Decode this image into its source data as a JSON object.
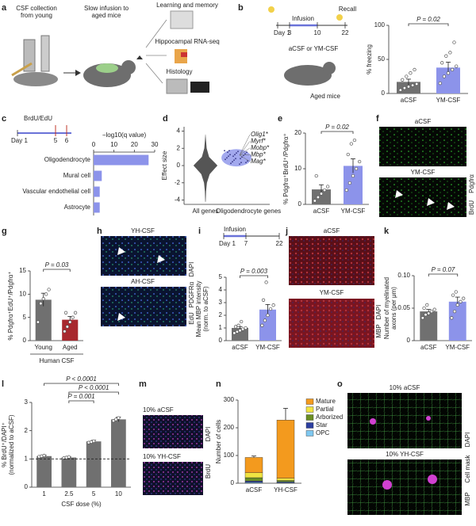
{
  "panel_labels": [
    "a",
    "b",
    "c",
    "d",
    "e",
    "f",
    "g",
    "h",
    "i",
    "j",
    "k",
    "l",
    "m",
    "n",
    "o"
  ],
  "panel_a": {
    "steps": [
      "CSF collection from young",
      "Slow infusion to aged mice"
    ],
    "readouts": [
      "Learning and memory",
      "Hippocampal RNA-seq",
      "Histology"
    ]
  },
  "panel_b": {
    "timeline": [
      "Day 1",
      "3",
      "10",
      "22"
    ],
    "phases": [
      "Infusion",
      "Recall"
    ],
    "treatment": "aCSF or YM-CSF",
    "subject": "Aged mice"
  },
  "panel_c": {
    "timeline_title": "BrdU/EdU",
    "timeline": [
      "Day 1",
      "5",
      "6"
    ]
  },
  "panel_f": {
    "conditions": [
      "aCSF",
      "YM-CSF"
    ],
    "stains": [
      "BrdU",
      "Pdgfrα"
    ]
  },
  "panel_h": {
    "conditions": [
      "YH-CSF",
      "AH-CSF"
    ],
    "stains": [
      "EdU",
      "PDGFRα",
      "DAPI"
    ]
  },
  "panel_i": {
    "timeline_title": "Infusion",
    "timeline": [
      "Day 1",
      "7",
      "22"
    ]
  },
  "panel_j": {
    "conditions": [
      "aCSF",
      "YM-CSF"
    ],
    "stains": [
      "MBP",
      "DAPI"
    ]
  },
  "panel_m": {
    "conditions": [
      "10% aCSF",
      "10% YH-CSF"
    ],
    "stains": [
      "BrdU",
      "DAPI"
    ]
  },
  "panel_o": {
    "conditions": [
      "10% aCSF",
      "10% YH-CSF"
    ],
    "stains": [
      "MBP",
      "Cell mask",
      "DAPI"
    ]
  },
  "chart_data": [
    {
      "type": "bar",
      "ylabel": "% freezing",
      "categories": [
        "aCSF",
        "YM-CSF"
      ],
      "values": [
        17,
        38
      ],
      "errors": [
        4,
        8
      ],
      "points": [
        [
          5,
          8,
          10,
          12,
          14,
          20,
          25,
          30,
          35
        ],
        [
          15,
          25,
          30,
          35,
          40,
          45,
          55,
          60,
          75
        ]
      ],
      "colors": [
        "#707070",
        "#8c93ea"
      ],
      "ylim": [
        0,
        100
      ],
      "yticks": [
        0,
        50,
        100
      ],
      "annotations": [
        "P = 0.02"
      ]
    },
    {
      "type": "hbar",
      "xlabel": "−log10(q value)",
      "categories": [
        "Oligodendrocyte",
        "Mural cell",
        "Vascular endothelial cell",
        "Astrocyte"
      ],
      "values": [
        27,
        4,
        3,
        3
      ],
      "color": "#8c93ea",
      "xlim": [
        0,
        30
      ],
      "xticks": [
        0,
        10,
        20,
        30
      ]
    },
    {
      "type": "violin",
      "ylabel": "Effect size",
      "categories": [
        "All genes",
        "Oligodendrocyte genes"
      ],
      "labels": [
        "Olig1*",
        "Myrf*",
        "Mobp*",
        "Mbp*",
        "Mag*"
      ],
      "colors": [
        "#555555",
        "#8c93ea"
      ],
      "ylim": [
        -4.5,
        4.5
      ],
      "yticks": [
        -4,
        -2,
        0,
        2,
        4
      ]
    },
    {
      "type": "bar",
      "ylabel": "% Pdgfrα⁺BrdU⁺/Pdgfrα⁺",
      "categories": [
        "aCSF",
        "YM-CSF"
      ],
      "values": [
        4.2,
        10.8
      ],
      "errors": [
        1.3,
        2.0
      ],
      "points": [
        [
          1,
          2,
          3,
          4,
          5,
          8
        ],
        [
          4,
          6,
          8,
          10,
          12,
          14,
          17,
          18
        ]
      ],
      "colors": [
        "#707070",
        "#8c93ea"
      ],
      "ylim": [
        0,
        20
      ],
      "yticks": [
        0,
        10,
        20
      ],
      "annotations": [
        "P = 0.02"
      ]
    },
    {
      "type": "bar",
      "ylabel": "% Pdgfrα⁺EdU⁺/Pdgfrα⁺",
      "categories": [
        "Young",
        "Aged"
      ],
      "values": [
        8.8,
        4.5
      ],
      "errors": [
        1.4,
        0.7
      ],
      "points": [
        [
          4,
          8,
          9,
          10,
          11
        ],
        [
          2,
          3,
          4,
          5,
          6,
          6
        ]
      ],
      "colors": [
        "#707070",
        "#a8282e"
      ],
      "ylim": [
        0,
        15
      ],
      "yticks": [
        0,
        5,
        10,
        15
      ],
      "annotations": [
        "P = 0.03"
      ],
      "group_label": "Human CSF"
    },
    {
      "type": "bar",
      "ylabel": [
        "Mean MBP intensity",
        "(norm. to aCSF)"
      ],
      "categories": [
        "aCSF",
        "YM-CSF"
      ],
      "values": [
        1.0,
        2.45
      ],
      "errors": [
        0.1,
        0.4
      ],
      "points": [
        [
          0.6,
          0.7,
          0.8,
          0.9,
          1.0,
          1.1,
          1.2,
          1.5
        ],
        [
          1.2,
          1.6,
          2.0,
          2.5,
          2.8,
          3.2,
          4.6
        ]
      ],
      "colors": [
        "#707070",
        "#8c93ea"
      ],
      "ylim": [
        0,
        5
      ],
      "yticks": [
        0,
        1,
        2,
        3,
        4,
        5
      ],
      "annotations": [
        "P = 0.003"
      ]
    },
    {
      "type": "bar",
      "ylabel": [
        "Number of myelinated",
        "axons (per μm)"
      ],
      "categories": [
        "aCSF",
        "YM-CSF"
      ],
      "values": [
        0.045,
        0.06
      ],
      "errors": [
        0.003,
        0.007
      ],
      "points": [
        [
          0.035,
          0.04,
          0.042,
          0.045,
          0.048,
          0.05,
          0.055
        ],
        [
          0.035,
          0.045,
          0.055,
          0.06,
          0.065,
          0.07,
          0.075
        ]
      ],
      "colors": [
        "#707070",
        "#8c93ea"
      ],
      "ylim": [
        0,
        0.1
      ],
      "yticks": [
        0,
        0.05,
        {
          "value": 0.1,
          "label": "0.10"
        }
      ],
      "annotations": [
        "P = 0.07"
      ]
    },
    {
      "type": "bar",
      "ylabel": [
        "% BrdU⁺/DAPI⁺",
        "(normalized to aCSF)"
      ],
      "xlabel": "CSF dose (%)",
      "categories": [
        "1",
        "2.5",
        "5",
        "10"
      ],
      "values": [
        1.1,
        1.05,
        1.62,
        2.4
      ],
      "errors": [
        0.03,
        0.02,
        0.04,
        0.08
      ],
      "points": [
        [
          1.08,
          1.1,
          1.12
        ],
        [
          1.03,
          1.05,
          1.07
        ],
        [
          1.58,
          1.6,
          1.63
        ],
        [
          2.35,
          2.4,
          2.45
        ]
      ],
      "colors": [
        "#707070",
        "#707070",
        "#707070",
        "#707070"
      ],
      "ylim": [
        0,
        3
      ],
      "yticks": [
        0,
        1,
        2,
        3
      ],
      "reference_line": 1,
      "annotations": [
        "P < 0.0001",
        "P < 0.0001",
        "P = 0.001"
      ]
    },
    {
      "type": "stacked_bar",
      "ylabel": "Number of cells",
      "categories": [
        "aCSF",
        "YH-CSF"
      ],
      "series": [
        {
          "name": "Mature",
          "color": "#f39a1e",
          "values": [
            55,
            210
          ]
        },
        {
          "name": "Partial",
          "color": "#f0e442",
          "values": [
            18,
            8
          ]
        },
        {
          "name": "Arborized",
          "color": "#6b8e23",
          "values": [
            12,
            5
          ]
        },
        {
          "name": "Star",
          "color": "#2c3ea0",
          "values": [
            5,
            3
          ]
        },
        {
          "name": "OPC",
          "color": "#7fc8f0",
          "values": [
            3,
            2
          ]
        }
      ],
      "errors": [
        5,
        42
      ],
      "ylim": [
        0,
        300
      ],
      "yticks": [
        0,
        100,
        200,
        300
      ]
    }
  ]
}
